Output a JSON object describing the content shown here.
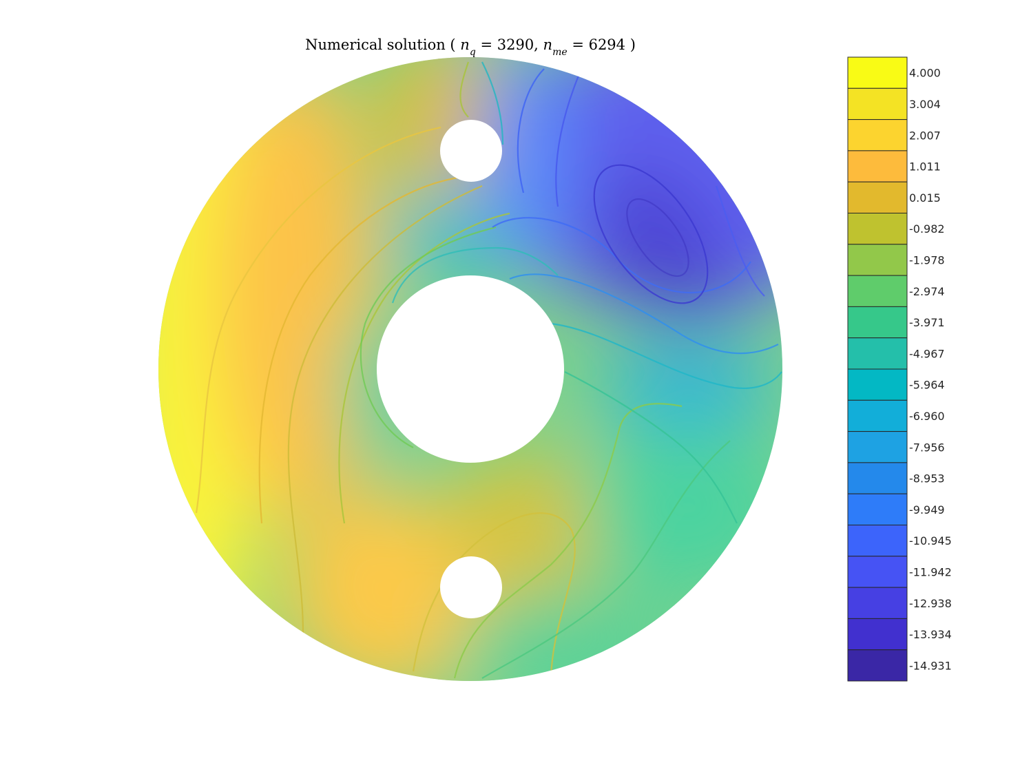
{
  "chart_data": {
    "type": "heatmap",
    "title": {
      "prefix": "Numerical solution ( ",
      "nq_symbol": "n",
      "nq_sub": "q",
      "nq_value": " = 3290, ",
      "nme_symbol": "n",
      "nme_sub": "me",
      "nme_value": " = 6294 )"
    },
    "domain": {
      "shape": "annulus with two small circular holes",
      "outer_radius": 1.0,
      "inner_radius": 0.3,
      "small_holes": [
        {
          "cx": 0.0,
          "cy": 0.7,
          "r": 0.1
        },
        {
          "cx": 0.0,
          "cy": -0.7,
          "r": 0.1
        }
      ]
    },
    "colorbar": {
      "placement": "right",
      "min": -14.931,
      "max": 4.0,
      "levels": [
        {
          "label": "4.000",
          "color": "#f9fb15"
        },
        {
          "label": "3.004",
          "color": "#f4e324"
        },
        {
          "label": "2.007",
          "color": "#fcd42f"
        },
        {
          "label": "1.011",
          "color": "#fdbb3c"
        },
        {
          "label": "0.015",
          "color": "#e2b92d"
        },
        {
          "label": "-0.982",
          "color": "#bfc22f"
        },
        {
          "label": "-1.978",
          "color": "#92c84a"
        },
        {
          "label": "-2.974",
          "color": "#5fcc6b"
        },
        {
          "label": "-3.971",
          "color": "#36c88a"
        },
        {
          "label": "-4.967",
          "color": "#24bfaa"
        },
        {
          "label": "-5.964",
          "color": "#03b8c4"
        },
        {
          "label": "-6.960",
          "color": "#12aed9"
        },
        {
          "label": "-7.956",
          "color": "#1ea2e3"
        },
        {
          "label": "-8.953",
          "color": "#2489eb"
        },
        {
          "label": "-9.949",
          "color": "#2e7cf9"
        },
        {
          "label": "-10.945",
          "color": "#3c64fb"
        },
        {
          "label": "-11.942",
          "color": "#4653f4"
        },
        {
          "label": "-12.938",
          "color": "#4640e3"
        },
        {
          "label": "-13.934",
          "color": "#4130cf"
        },
        {
          "label": "-14.931",
          "color": "#3a27a6"
        }
      ]
    }
  }
}
